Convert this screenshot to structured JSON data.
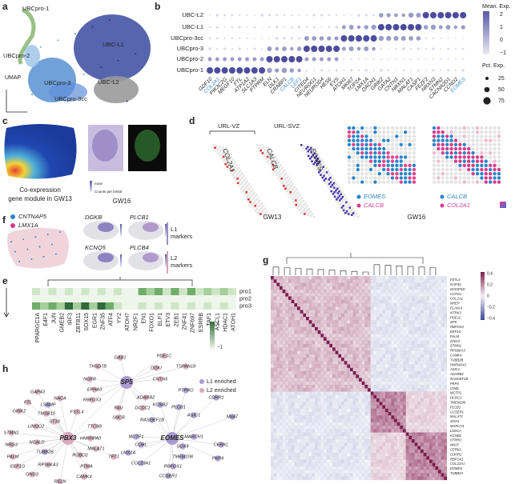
{
  "panel_labels": [
    "a",
    "b",
    "c",
    "d",
    "e",
    "f",
    "g",
    "h"
  ],
  "a": {
    "clusters": [
      "UBCpro-1",
      "UBCpro-2",
      "UBC-L1",
      "UBCpro-3",
      "UBC-L2",
      "UBCpro-3cc"
    ],
    "axis_label": "UMAP"
  },
  "b": {
    "rows": [
      "UBC-L2",
      "UBC-L1",
      "UBCpro-3cc",
      "UBCpro-3",
      "UBCpro-2",
      "UBCpro-1"
    ],
    "genes": [
      "GDF10",
      "COL2A1",
      "PIK3C2G",
      "MEGF10",
      "FTL",
      "ATP1A2",
      "SLC1A3",
      "PTPRM",
      "ELN",
      "DLK1",
      "CRABP1",
      "CALCB",
      "LEF1",
      "CITED4",
      "NEUROG1",
      "NEUROD4",
      "HES6",
      "EYS",
      "ATOH1",
      "MKI67",
      "TOP2A",
      "LMX1A",
      "DACH1",
      "GRIK2",
      "GATA2",
      "CNTN1",
      "NRXN1",
      "MALAT1",
      "CASP1",
      "FEZF2",
      "NRXN3",
      "STMN2",
      "CACNA2D1",
      "CCND2",
      "EOMES"
    ],
    "highlight": [
      "COL2A1",
      "CALCB",
      "LEF1",
      "EOMES"
    ],
    "highlight_color": "#3b8fd9",
    "mean_exp_title": "Mean. Exp.",
    "mean_exp_ticks": [
      "2",
      "1",
      "0",
      "−1"
    ],
    "pct_exp_title": "Pct. Exp.",
    "pct_exp_ticks": [
      25,
      50,
      75
    ]
  },
  "c": {
    "caption": [
      "Co-expression",
      "gene module in GW13"
    ],
    "stage": "GW16",
    "scale_labels": [
      "none",
      "Counts per bin50"
    ]
  },
  "d": {
    "zones": [
      "URL-VZ",
      "URL-SVZ"
    ],
    "genes": [
      "COL2A1",
      "CALCB",
      "EOMES"
    ],
    "stages": [
      "GW13",
      "GW16"
    ],
    "legend_left": [
      "EOMES",
      "CALCB"
    ],
    "legend_right": [
      "CALCB",
      "COL2A1"
    ]
  },
  "e": {
    "rows": [
      "pro1",
      "pro2",
      "pro3"
    ],
    "genes": [
      "PPARGC1A",
      "E4F1",
      "JUN",
      "GMEB2",
      "IRF3",
      "ZBTB11",
      "SOX15",
      "EGR1",
      "ZNF35",
      "ATF4",
      "YY2",
      "ATOH7",
      "NR2F1",
      "EN1",
      "FOXO1",
      "ELF1",
      "ETV3",
      "ZEB1",
      "ZNF41",
      "ZNF697",
      "ESRRB",
      "TAF1",
      "ASCL1",
      "HDAC1",
      "ATOH1"
    ],
    "colorbar": [
      "1",
      "−1"
    ]
  },
  "f": {
    "legend": [
      "CNTNAP5",
      "LMX1A"
    ],
    "genes": [
      "DGKB",
      "PLCB1",
      "KCNQ5",
      "PLCB4"
    ],
    "l1": [
      "L1",
      "markers"
    ],
    "l2": [
      "L2",
      "markers"
    ]
  },
  "g": {
    "colorbar": [
      "0.4",
      "0.2",
      "0",
      "−0.2",
      "−0.4"
    ],
    "genes": [
      "FSTL4",
      "GAP43",
      "NCKIPSD",
      "CCPG1",
      "COL2A1",
      "NREP",
      "ELAVL4",
      "NTRK3",
      "PDE1C",
      "SP5",
      "RBFOX3",
      "EEF1G",
      "PALM",
      "GNG3",
      "STMN1",
      "RPS6KA3",
      "CAMK4",
      "TUBB2B",
      "HNRNPA0",
      "ASIC1",
      "ADARB2",
      "RASGEF1B",
      "PKP4",
      "COBL",
      "MCTP1",
      "DCDC1",
      "TMEM108",
      "PLCB1",
      "CCSER1",
      "MALAT1",
      "SOX4",
      "MARCH1",
      "LMX1A",
      "KCNB2",
      "PTPRO",
      "NNAT",
      "CERKL",
      "CDHR1",
      "RBFOX1",
      "COL23A1",
      "EOMES",
      "TUBB2A"
    ]
  },
  "h": {
    "hubs": [
      "PBX3",
      "SP5",
      "EOMES"
    ],
    "nodes": [
      "GAB1",
      "PDE1C",
      "THSD7B",
      "DGKI",
      "TSPAN18",
      "CNTN5",
      "NGFR",
      "EPHA3",
      "ADARB2",
      "RBFOX3",
      "DCDC1",
      "GAP43",
      "NACA",
      "FTL",
      "LSAMP",
      "GRIK2",
      "TMSB10",
      "FSTL4",
      "ST18",
      "LINGO2",
      "STMN1",
      "NRG3",
      "NCALD",
      "TTC9B",
      "HNRNPA0",
      "MALAT1",
      "TUBB2B",
      "ROBO2",
      "PALM",
      "TPT1",
      "EEF1G",
      "RPS6KA3",
      "PTMA",
      "GNG3",
      "CAMK4",
      "RELN",
      "SNCB",
      "FAU",
      "PTPRO",
      "KCNB2",
      "CDHR1",
      "RASGEF1B",
      "ASIC1",
      "PLCB1",
      "NNAT",
      "MCTP1",
      "CERKL",
      "COBL",
      "SOX4",
      "PKP4",
      "LMX1A",
      "TMEM108",
      "COL23A1",
      "MARCH1",
      "RBFOX1",
      "CCSER1"
    ],
    "legend": [
      "L1 enriched",
      "L2 enriched"
    ]
  }
}
